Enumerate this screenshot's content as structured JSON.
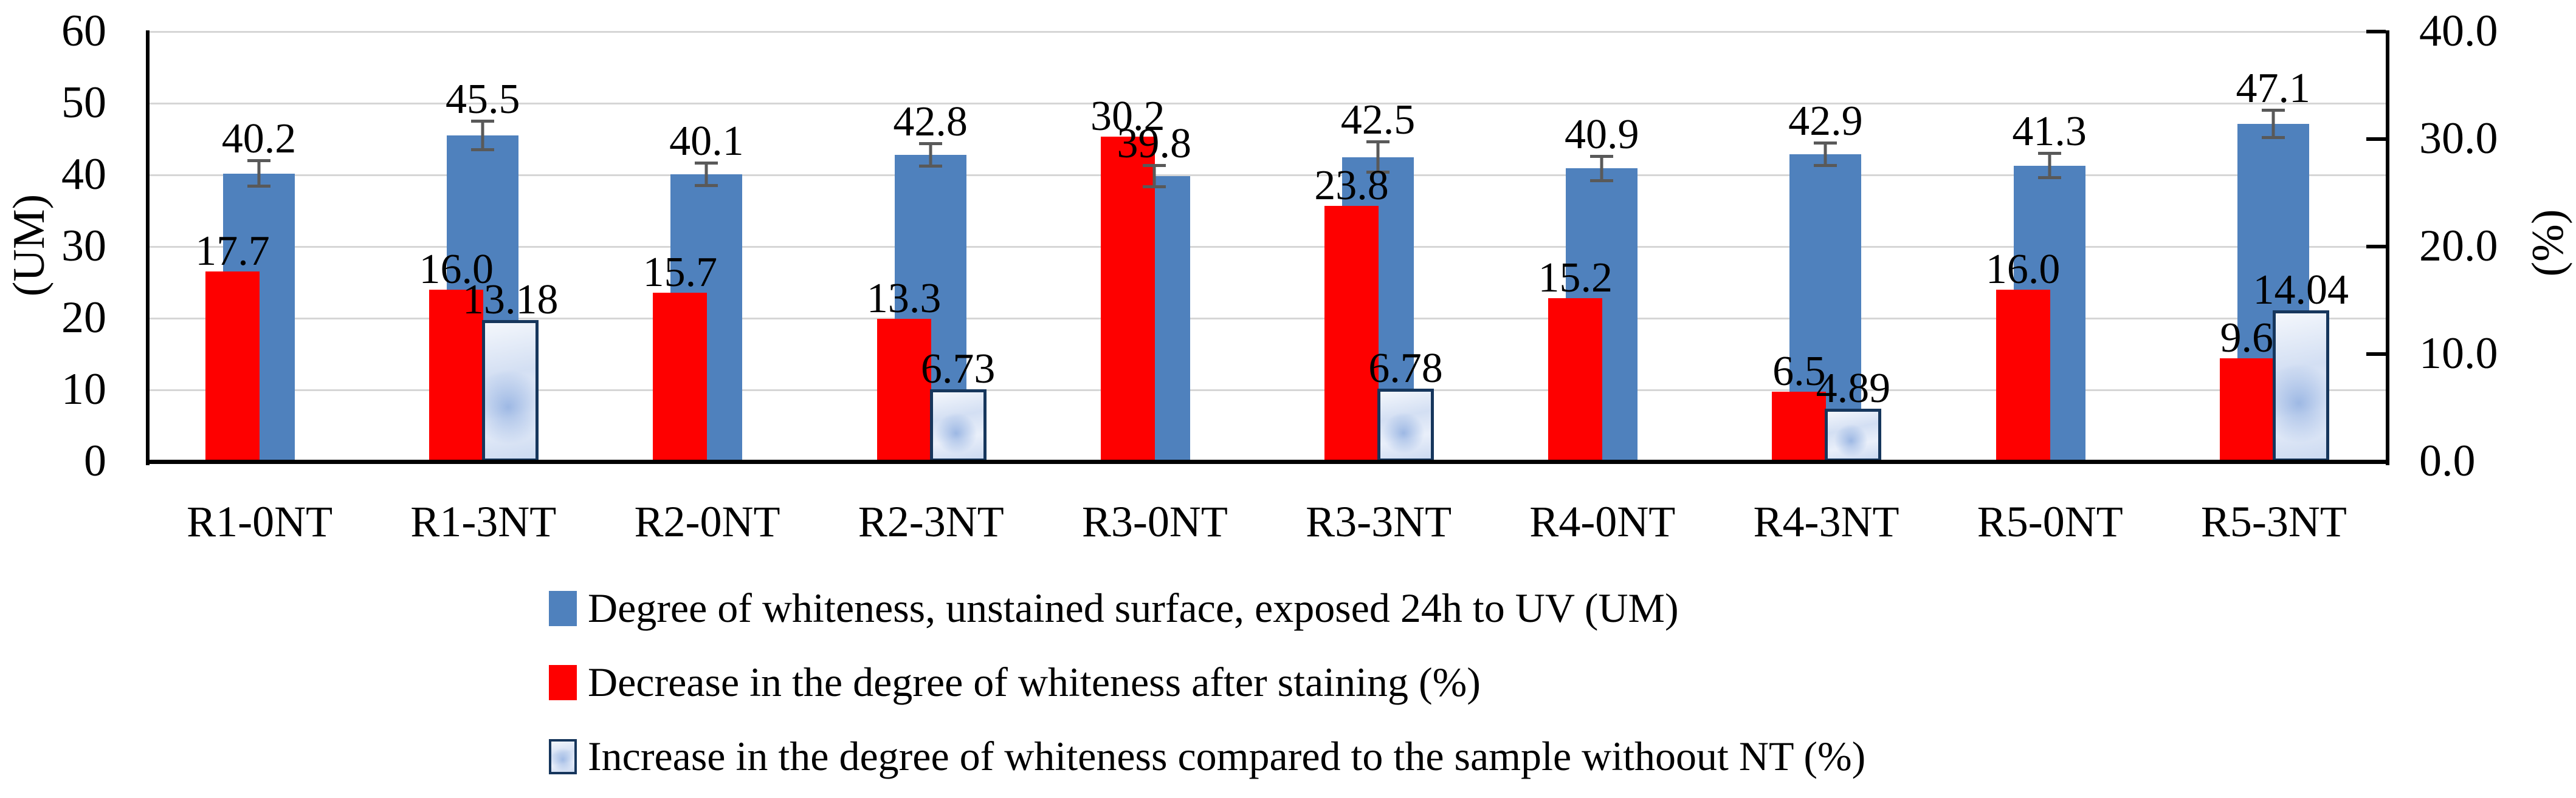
{
  "chart_data": {
    "type": "bar",
    "title": "",
    "categories": [
      "R1-0NT",
      "R1-3NT",
      "R2-0NT",
      "R2-3NT",
      "R3-0NT",
      "R3-3NT",
      "R4-0NT",
      "R4-3NT",
      "R5-0NT",
      "R5-3NT"
    ],
    "series": [
      {
        "name": "Degree of whiteness, unstained surface, exposed 24h to UV (UM)",
        "axis": "left",
        "color": "#4f81bd",
        "values": [
          40.2,
          45.5,
          40.1,
          42.8,
          39.8,
          42.5,
          40.9,
          42.9,
          41.3,
          47.1
        ],
        "labels": [
          "40.2",
          "45.5",
          "40.1",
          "42.8",
          "39.8",
          "42.5",
          "40.9",
          "42.9",
          "41.3",
          "47.1"
        ],
        "error_bars": [
          2.0,
          2.2,
          1.8,
          1.8,
          1.7,
          2.3,
          1.9,
          1.8,
          1.9,
          2.1
        ]
      },
      {
        "name": "Decrease in the degree of whiteness after staining (%)",
        "axis": "right",
        "color": "#fe0000",
        "values": [
          17.7,
          16.0,
          15.7,
          13.3,
          30.2,
          23.8,
          15.2,
          6.5,
          16.0,
          9.6
        ],
        "labels": [
          "17.7",
          "16.0",
          "15.7",
          "13.3",
          "30.2",
          "23.8",
          "15.2",
          "6.5",
          "16.0",
          "9.6"
        ]
      },
      {
        "name": "Increase in the degree of whiteness compared to the sample withoout NT (%)",
        "axis": "right",
        "color": "#dce6f5",
        "border_color": "#16365c",
        "values": [
          null,
          13.18,
          null,
          6.73,
          null,
          6.78,
          null,
          4.89,
          null,
          14.04
        ],
        "labels": [
          null,
          "13.18",
          null,
          "6.73",
          null,
          "6.78",
          null,
          "4.89",
          null,
          "14.04"
        ]
      }
    ],
    "left_axis": {
      "title": "(UM)",
      "min": 0,
      "max": 60,
      "tick_step": 10,
      "ticks": [
        "0",
        "10",
        "20",
        "30",
        "40",
        "50",
        "60"
      ]
    },
    "right_axis": {
      "title": "(%)",
      "min": 0,
      "max": 40,
      "tick_step": 10,
      "ticks": [
        "0.0",
        "10.0",
        "20.0",
        "30.0",
        "40.0"
      ]
    },
    "gridlines": "horizontal",
    "legend_position": "bottom-left"
  },
  "colors": {
    "gridline": "#d6d6d6",
    "axis": "#000000",
    "error_bar": "#595959",
    "text": "#000000",
    "background": "#ffffff"
  }
}
